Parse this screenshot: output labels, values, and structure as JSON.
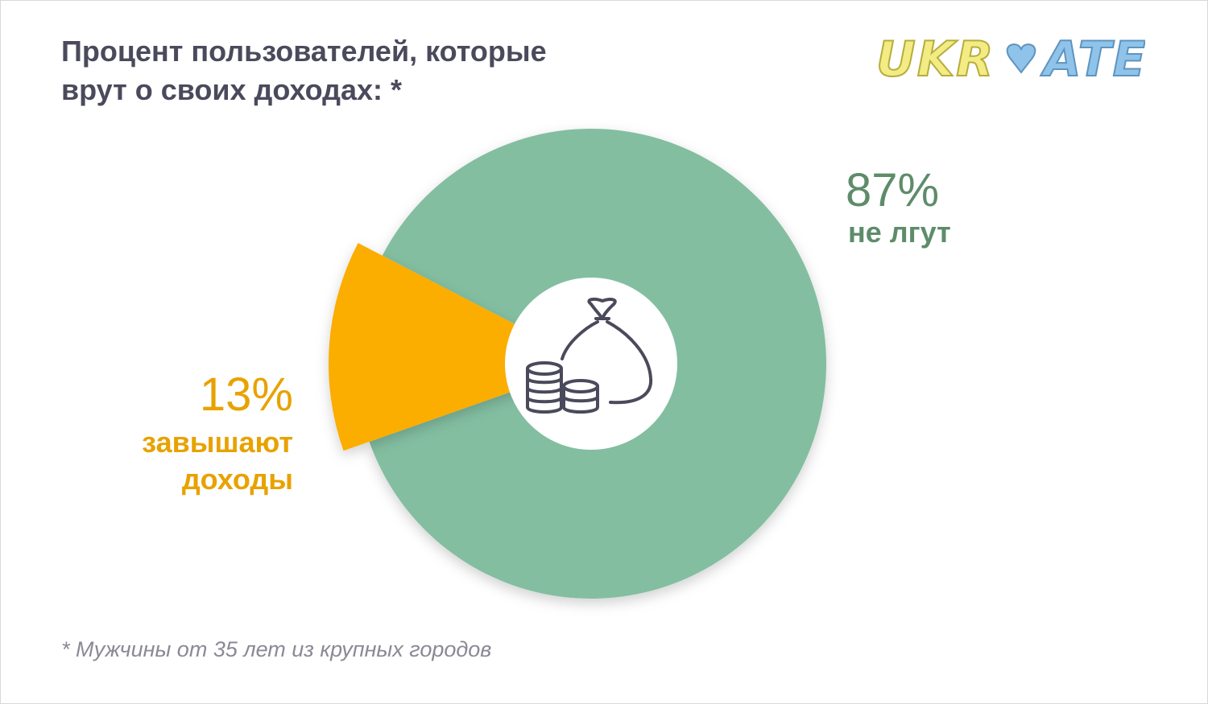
{
  "title_line1": "Процент пользователей, которые",
  "title_line2": "врут о своих доходах: *",
  "logo": {
    "text_part1": "UKR",
    "text_part2": "ATE",
    "heart_icon": "heart-icon",
    "colors": {
      "text_fill": "#f3ec84",
      "text_stroke": "#b7ad3c",
      "heart": "#8fc3ea"
    }
  },
  "center_icon": "money-bag-coins-icon",
  "footnote": "* Мужчины от 35 лет из крупных городов",
  "colors": {
    "green": "#83bea1",
    "orange": "#fbad00",
    "green_text": "#5e8c6a",
    "orange_text": "#e8a200",
    "icon": "#4a4a5c"
  },
  "chart_data": {
    "type": "pie",
    "donut": true,
    "slices": [
      {
        "pct_label": "87%",
        "desc_label": "не лгут",
        "value": 87,
        "color": "#83bea1"
      },
      {
        "pct_label": "13%",
        "desc_label_line1": "завышают",
        "desc_label_line2": "доходы",
        "value": 13,
        "color": "#fbad00"
      }
    ]
  }
}
